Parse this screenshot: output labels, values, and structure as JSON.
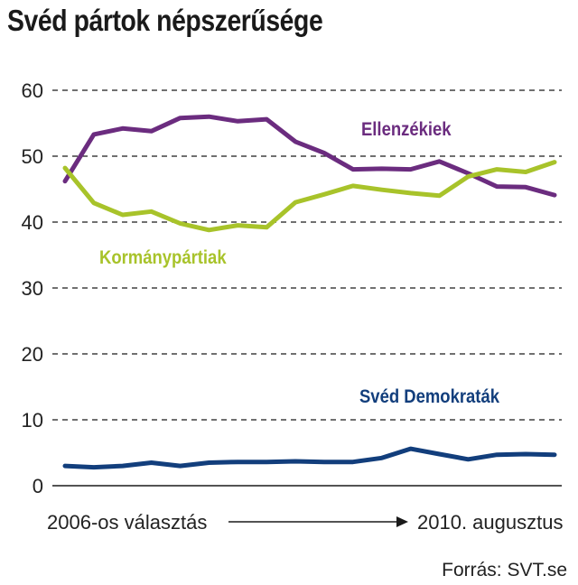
{
  "title": "Svéd pártok népszerűsége",
  "source": "Forrás:  SVT.se",
  "chart_data": {
    "type": "line",
    "ylim": [
      0,
      60
    ],
    "yticks": [
      0,
      10,
      20,
      30,
      40,
      50,
      60
    ],
    "grid": true,
    "x_start_label": "2006-os választás",
    "x_end_label": "2010. augusztus",
    "x": [
      0,
      1,
      2,
      3,
      4,
      5,
      6,
      7,
      8,
      9,
      10,
      11,
      12,
      13,
      14,
      15,
      16,
      17
    ],
    "series": [
      {
        "name": "Ellenzékiek",
        "color": "#6b2c7f",
        "values": [
          46.2,
          53.3,
          54.2,
          53.8,
          55.8,
          56.0,
          55.3,
          55.6,
          52.2,
          50.5,
          48.0,
          48.1,
          48.0,
          49.2,
          47.4,
          45.4,
          45.3,
          44.1
        ]
      },
      {
        "name": "Kormánypártiak",
        "color": "#a8c32a",
        "values": [
          48.2,
          42.9,
          41.1,
          41.6,
          39.8,
          38.8,
          39.5,
          39.2,
          43.0,
          44.2,
          45.5,
          44.9,
          44.4,
          44.0,
          46.9,
          48.0,
          47.6,
          49.1
        ]
      },
      {
        "name": "Svéd Demokraták",
        "color": "#123e7c",
        "values": [
          3.0,
          2.8,
          3.0,
          3.5,
          3.0,
          3.5,
          3.6,
          3.6,
          3.7,
          3.6,
          3.6,
          4.2,
          5.6,
          4.8,
          4.0,
          4.7,
          4.8,
          4.7
        ]
      }
    ]
  }
}
